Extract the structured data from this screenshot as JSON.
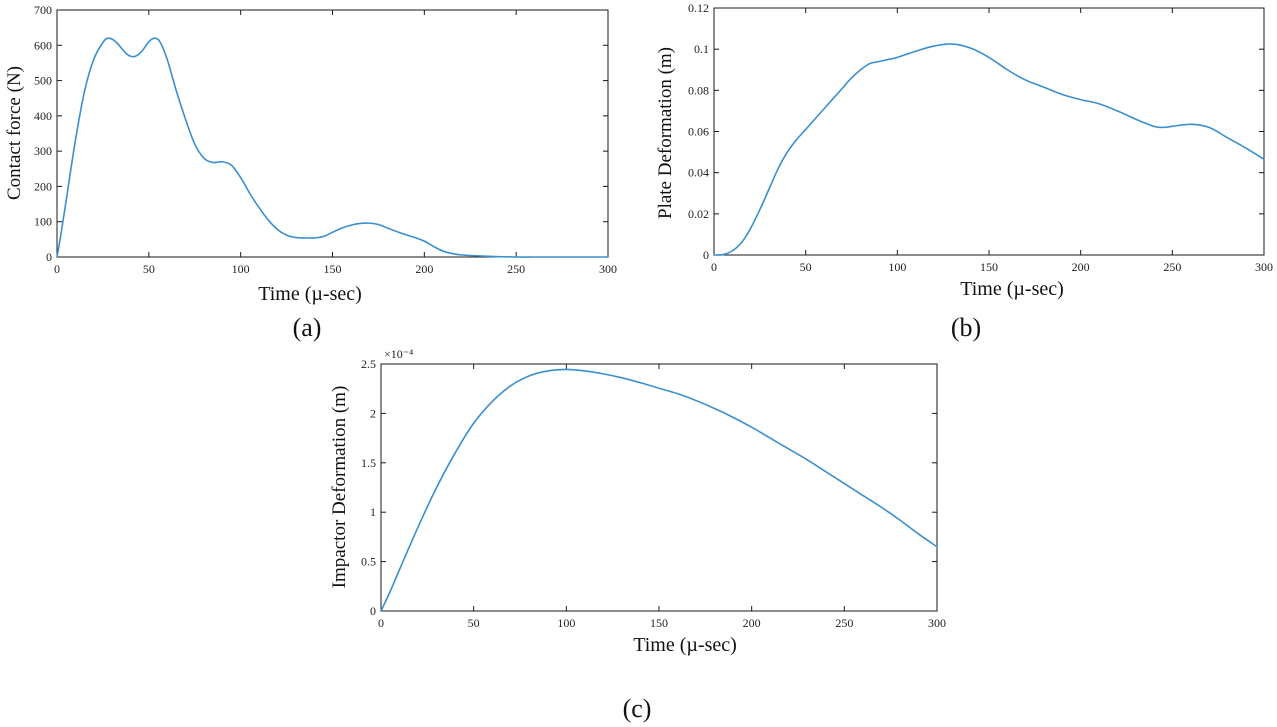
{
  "colors": {
    "series": "#3b8fcd",
    "axes": "#1a1a1a"
  },
  "chart_data": [
    {
      "id": "a",
      "type": "line",
      "caption": "(a)",
      "xlabel": "Time (µ-sec)",
      "ylabel": "Contact force (N)",
      "xlim": [
        0,
        300
      ],
      "ylim": [
        0,
        700
      ],
      "xticks": [
        0,
        50,
        100,
        150,
        200,
        250,
        300
      ],
      "yticks": [
        0,
        100,
        200,
        300,
        400,
        500,
        600,
        700
      ],
      "ytick_labels": [
        "0",
        "100",
        "200",
        "300",
        "400",
        "500",
        "600",
        "700"
      ],
      "exponent_label": "",
      "grid": false,
      "series": [
        {
          "name": "Contact force",
          "x": [
            0,
            2,
            5,
            10,
            15,
            20,
            25,
            28,
            32,
            38,
            42,
            46,
            50,
            53,
            56,
            60,
            65,
            70,
            75,
            80,
            85,
            90,
            95,
            100,
            105,
            110,
            115,
            120,
            125,
            130,
            135,
            140,
            145,
            150,
            155,
            160,
            165,
            170,
            175,
            180,
            185,
            190,
            195,
            200,
            205,
            210,
            215,
            220,
            230,
            240,
            250,
            260,
            270,
            280,
            290,
            300
          ],
          "y": [
            0,
            60,
            160,
            330,
            470,
            560,
            608,
            620,
            610,
            575,
            568,
            582,
            610,
            620,
            610,
            560,
            470,
            390,
            320,
            280,
            268,
            270,
            260,
            225,
            180,
            140,
            105,
            78,
            62,
            55,
            54,
            54,
            58,
            70,
            82,
            90,
            95,
            96,
            92,
            82,
            72,
            63,
            55,
            45,
            30,
            17,
            10,
            6,
            3,
            1,
            0,
            0,
            0,
            0,
            0,
            0
          ]
        }
      ]
    },
    {
      "id": "b",
      "type": "line",
      "caption": "(b)",
      "xlabel": "Time (µ-sec)",
      "ylabel": "Plate  Deformation  (m)",
      "xlim": [
        0,
        300
      ],
      "ylim": [
        0,
        0.12
      ],
      "xticks": [
        0,
        50,
        100,
        150,
        200,
        250,
        300
      ],
      "yticks": [
        0,
        0.02,
        0.04,
        0.06,
        0.08,
        0.1,
        0.12
      ],
      "ytick_labels": [
        "0",
        "0.02",
        "0.04",
        "0.06",
        "0.08",
        "0.1",
        "0.12"
      ],
      "exponent_label": "",
      "grid": false,
      "series": [
        {
          "name": "Plate deformation",
          "x": [
            0,
            5,
            10,
            15,
            20,
            25,
            30,
            35,
            40,
            45,
            50,
            55,
            60,
            65,
            70,
            75,
            80,
            85,
            90,
            95,
            100,
            110,
            120,
            130,
            140,
            150,
            160,
            170,
            180,
            190,
            200,
            210,
            220,
            230,
            240,
            245,
            250,
            260,
            270,
            280,
            290,
            300
          ],
          "y": [
            0,
            0.0002,
            0.002,
            0.006,
            0.013,
            0.022,
            0.032,
            0.042,
            0.05,
            0.056,
            0.061,
            0.066,
            0.071,
            0.076,
            0.081,
            0.086,
            0.09,
            0.093,
            0.094,
            0.095,
            0.096,
            0.099,
            0.1015,
            0.1025,
            0.1005,
            0.096,
            0.09,
            0.085,
            0.0815,
            0.078,
            0.0755,
            0.0735,
            0.07,
            0.066,
            0.0625,
            0.062,
            0.0625,
            0.0635,
            0.062,
            0.057,
            0.052,
            0.0465
          ]
        }
      ]
    },
    {
      "id": "c",
      "type": "line",
      "caption": "(c)",
      "xlabel": "Time (µ-sec)",
      "ylabel": "Impactor   Deformation  (m)",
      "xlim": [
        0,
        300
      ],
      "ylim": [
        0,
        2.5
      ],
      "xticks": [
        0,
        50,
        100,
        150,
        200,
        250,
        300
      ],
      "yticks": [
        0,
        0.5,
        1,
        1.5,
        2,
        2.5
      ],
      "ytick_labels": [
        "0",
        "0.5",
        "1",
        "1.5",
        "2",
        "2.5"
      ],
      "exponent_label": "×10⁻⁴",
      "grid": false,
      "series": [
        {
          "name": "Impactor deformation (×1e-4 m)",
          "x": [
            0,
            5,
            10,
            20,
            30,
            40,
            50,
            60,
            70,
            80,
            90,
            100,
            110,
            120,
            130,
            140,
            150,
            160,
            170,
            180,
            190,
            200,
            210,
            220,
            230,
            240,
            250,
            260,
            270,
            280,
            290,
            300
          ],
          "y": [
            0,
            0.2,
            0.42,
            0.85,
            1.25,
            1.6,
            1.9,
            2.12,
            2.28,
            2.38,
            2.43,
            2.445,
            2.43,
            2.4,
            2.36,
            2.31,
            2.255,
            2.2,
            2.13,
            2.05,
            1.96,
            1.86,
            1.75,
            1.64,
            1.53,
            1.41,
            1.29,
            1.17,
            1.05,
            0.92,
            0.78,
            0.65
          ]
        }
      ]
    }
  ]
}
